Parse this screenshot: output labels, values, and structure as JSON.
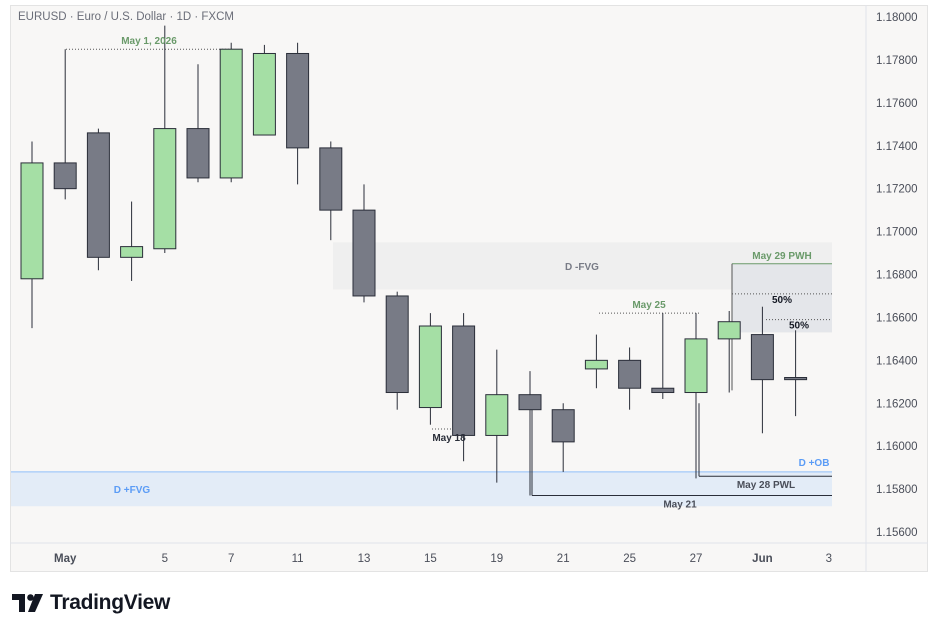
{
  "chart_data": {
    "type": "candlestick",
    "title": "EURUSD · Euro / U.S. Dollar · 1D · FXCM",
    "symbol": "EURUSD",
    "timeframe": "1D",
    "source": "FXCM",
    "ylim": [
      1.155,
      1.181
    ],
    "y_ticks": [
      "1.18000",
      "1.17800",
      "1.17600",
      "1.17400",
      "1.17200",
      "1.17000",
      "1.16800",
      "1.16600",
      "1.16400",
      "1.16200",
      "1.16000",
      "1.15800",
      "1.15600"
    ],
    "x_ticks": [
      "May",
      "5",
      "7",
      "11",
      "13",
      "15",
      "19",
      "21",
      "25",
      "27",
      "Jun",
      "3"
    ],
    "candles": [
      {
        "o": 1.1678,
        "h": 1.1742,
        "l": 1.1655,
        "c": 1.1732
      },
      {
        "o": 1.1732,
        "h": 1.1785,
        "l": 1.1715,
        "c": 1.172
      },
      {
        "o": 1.1746,
        "h": 1.1748,
        "l": 1.1682,
        "c": 1.1688
      },
      {
        "o": 1.1688,
        "h": 1.1714,
        "l": 1.1677,
        "c": 1.1693
      },
      {
        "o": 1.1692,
        "h": 1.1796,
        "l": 1.169,
        "c": 1.1748
      },
      {
        "o": 1.1748,
        "h": 1.1778,
        "l": 1.1723,
        "c": 1.1725
      },
      {
        "o": 1.1725,
        "h": 1.1788,
        "l": 1.1723,
        "c": 1.1785
      },
      {
        "o": 1.1745,
        "h": 1.1787,
        "l": 1.1745,
        "c": 1.1783
      },
      {
        "o": 1.1783,
        "h": 1.1788,
        "l": 1.1722,
        "c": 1.1739
      },
      {
        "o": 1.1739,
        "h": 1.1742,
        "l": 1.1696,
        "c": 1.171
      },
      {
        "o": 1.171,
        "h": 1.1722,
        "l": 1.1667,
        "c": 1.167
      },
      {
        "o": 1.167,
        "h": 1.1672,
        "l": 1.1617,
        "c": 1.1625
      },
      {
        "o": 1.1618,
        "h": 1.1662,
        "l": 1.161,
        "c": 1.1656
      },
      {
        "o": 1.1656,
        "h": 1.1662,
        "l": 1.1593,
        "c": 1.1605
      },
      {
        "o": 1.1605,
        "h": 1.1645,
        "l": 1.1583,
        "c": 1.1624
      },
      {
        "o": 1.1624,
        "h": 1.1635,
        "l": 1.1577,
        "c": 1.1617
      },
      {
        "o": 1.1617,
        "h": 1.162,
        "l": 1.1588,
        "c": 1.1602
      },
      {
        "o": 1.1636,
        "h": 1.1652,
        "l": 1.1627,
        "c": 1.164
      },
      {
        "o": 1.164,
        "h": 1.1646,
        "l": 1.1617,
        "c": 1.1627
      },
      {
        "o": 1.1627,
        "h": 1.1662,
        "l": 1.1622,
        "c": 1.1625
      },
      {
        "o": 1.1625,
        "h": 1.1662,
        "l": 1.1585,
        "c": 1.165
      },
      {
        "o": 1.165,
        "h": 1.1663,
        "l": 1.1625,
        "c": 1.1658
      },
      {
        "o": 1.1652,
        "h": 1.1665,
        "l": 1.1606,
        "c": 1.1631
      },
      {
        "o": 1.1632,
        "h": 1.1654,
        "l": 1.1614,
        "c": 1.1631
      }
    ],
    "zones": [
      {
        "label": "D -FVG",
        "from": 1.1695,
        "to": 1.1673
      },
      {
        "label": "D +FVG",
        "from": 1.1588,
        "to": 1.1572
      }
    ],
    "levels": [
      {
        "label": "May 1, 2026",
        "price": 1.1785
      },
      {
        "label": "May 29 PWH",
        "price": 1.1685
      },
      {
        "label": "May 25",
        "price": 1.1662
      },
      {
        "label": "May 18",
        "price": 1.1608
      },
      {
        "label": "D +OB",
        "price": 1.1588
      },
      {
        "label": "May 28 PWL",
        "price": 1.1586
      },
      {
        "label": "May 21",
        "price": 1.1577
      }
    ],
    "fib_box": {
      "from": 1.1685,
      "to": 1.1653,
      "labels": [
        "50%",
        "50%"
      ]
    },
    "colors": {
      "up": "#a5dfa5",
      "down": "#787b86",
      "outline": "#2a2e39",
      "neg_fvg": "#efefef",
      "pos_fvg": "#e3ecf7",
      "pos_fvg_line": "#90bff9",
      "label_green": "#6a9a6a",
      "label_blue": "#5b9cf6"
    }
  },
  "branding": {
    "logo_text": "TradingView",
    "logo_icon": "tradingview-logo-icon"
  }
}
